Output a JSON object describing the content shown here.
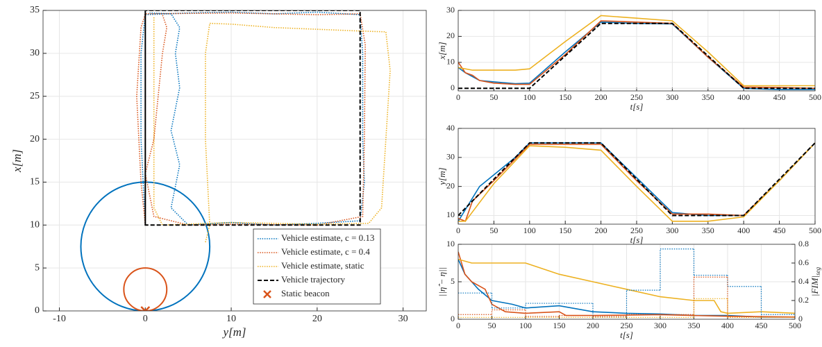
{
  "chart_data": [
    {
      "type": "line",
      "xlabel": "y[m]",
      "ylabel": "x[m]",
      "xlim": [
        -11.9,
        32.7
      ],
      "ylim": [
        0,
        35
      ],
      "xticks": [
        -10,
        0,
        10,
        20,
        30
      ],
      "yticks": [
        0,
        5,
        10,
        15,
        20,
        25,
        30,
        35
      ],
      "grid": true,
      "legend": "lower right",
      "series": [
        {
          "name": "Vehicle estimate, c = 0.13",
          "color": "#0072BD",
          "style": "dotted",
          "x": [
            0,
            -0.5,
            -0.5,
            0,
            5,
            10,
            15,
            20,
            25,
            25.3,
            25.3,
            25.5,
            25,
            20,
            15,
            10,
            5,
            3,
            4,
            3,
            4,
            3.5,
            4,
            3,
            0.5
          ],
          "values": [
            10,
            20,
            30,
            34.5,
            34.7,
            34.8,
            34.6,
            34.8,
            34.5,
            30,
            20,
            15,
            10.5,
            10.2,
            10,
            10.3,
            10,
            12,
            17,
            21,
            26,
            30,
            33,
            34.6,
            34.7
          ]
        },
        {
          "name": "Vehicle estimate, c = 0.4",
          "color": "#D95319",
          "style": "dotted",
          "x": [
            0,
            -0.5,
            -1,
            -0.5,
            0,
            10,
            20,
            25,
            25.6,
            25.5,
            25.3,
            20,
            10,
            5,
            1,
            0,
            1,
            1.5,
            2,
            2.5,
            2
          ],
          "values": [
            10,
            15,
            25,
            33,
            34.6,
            34.7,
            34.5,
            34.6,
            31,
            20,
            11,
            10,
            10.1,
            10,
            11,
            16,
            20,
            25,
            30,
            33,
            34.5
          ]
        },
        {
          "name": "Vehicle estimate, static",
          "color": "#EDB120",
          "style": "dotted",
          "x": [
            7,
            7.5,
            7,
            7,
            7.5,
            10,
            15,
            20,
            25,
            28,
            28.5,
            28,
            27.5,
            26,
            20,
            10,
            2,
            1,
            1,
            1,
            1
          ],
          "values": [
            8,
            10,
            20,
            30,
            33.5,
            33.4,
            33,
            32.8,
            32.6,
            32.5,
            28,
            20,
            12,
            10.2,
            10.1,
            10.3,
            10,
            12,
            20,
            30,
            34.3
          ]
        },
        {
          "name": "Vehicle trajectory",
          "color": "#000000",
          "style": "dashed",
          "x": [
            0,
            0,
            25,
            25,
            0,
            0
          ],
          "values": [
            10,
            35,
            35,
            10,
            10,
            35
          ]
        }
      ],
      "circles": [
        {
          "color": "#0072BD",
          "center": [
            0,
            7.5
          ],
          "radius": 7.5
        },
        {
          "color": "#D95319",
          "center": [
            0,
            2.5
          ],
          "radius": 2.5
        }
      ],
      "markers": [
        {
          "name": "Static beacon",
          "color": "#D95319",
          "x": 0,
          "y": 0
        }
      ]
    },
    {
      "type": "line",
      "xlabel": "t[s]",
      "ylabel": "x[m]",
      "xlim": [
        0,
        500
      ],
      "ylim": [
        -1,
        30
      ],
      "xticks": [
        0,
        50,
        100,
        150,
        200,
        250,
        300,
        350,
        400,
        450,
        500
      ],
      "yticks": [
        0,
        10,
        20,
        30
      ],
      "grid": true,
      "series": [
        {
          "color": "#0072BD",
          "style": "solid",
          "x": [
            0,
            10,
            30,
            50,
            80,
            100,
            150,
            200,
            250,
            300,
            350,
            400,
            450,
            500
          ],
          "values": [
            8,
            6,
            3,
            2.5,
            1.8,
            2,
            14,
            25.5,
            25,
            24.8,
            12,
            0,
            -0.5,
            -0.5
          ]
        },
        {
          "color": "#D95319",
          "style": "solid",
          "x": [
            0,
            10,
            20,
            30,
            50,
            80,
            100,
            150,
            200,
            250,
            300,
            350,
            400,
            450,
            500
          ],
          "values": [
            10,
            6,
            5,
            3,
            2,
            1.5,
            1.5,
            13,
            26,
            25.5,
            25,
            12,
            0.5,
            0.3,
            0
          ]
        },
        {
          "color": "#EDB120",
          "style": "solid",
          "x": [
            0,
            20,
            50,
            80,
            100,
            150,
            200,
            250,
            300,
            350,
            400,
            450,
            500
          ],
          "values": [
            8,
            7,
            7,
            7,
            7.5,
            18,
            28,
            27,
            26,
            14,
            1,
            1,
            1
          ]
        },
        {
          "color": "#000000",
          "style": "dashed",
          "x": [
            0,
            100,
            200,
            300,
            400,
            500
          ],
          "values": [
            0,
            0,
            25,
            25,
            0,
            0
          ]
        }
      ]
    },
    {
      "type": "line",
      "xlabel": "t[s]",
      "ylabel": "y[m]",
      "xlim": [
        0,
        500
      ],
      "ylim": [
        7,
        40
      ],
      "xticks": [
        0,
        50,
        100,
        150,
        200,
        250,
        300,
        350,
        400,
        450,
        500
      ],
      "yticks": [
        10,
        20,
        30,
        40
      ],
      "grid": true,
      "series": [
        {
          "color": "#0072BD",
          "style": "solid",
          "x": [
            0,
            10,
            30,
            50,
            80,
            100,
            150,
            200,
            250,
            300,
            350,
            400,
            450,
            500
          ],
          "values": [
            8,
            12,
            20,
            24,
            30,
            35,
            35,
            35,
            23,
            11,
            10,
            10,
            22,
            35
          ]
        },
        {
          "color": "#D95319",
          "style": "solid",
          "x": [
            0,
            10,
            20,
            50,
            100,
            150,
            200,
            250,
            300,
            350,
            400,
            450,
            500
          ],
          "values": [
            9,
            8,
            15,
            22,
            34.5,
            34.5,
            34.5,
            22,
            10.5,
            10.5,
            10,
            22,
            35
          ]
        },
        {
          "color": "#EDB120",
          "style": "solid",
          "x": [
            0,
            10,
            50,
            100,
            150,
            200,
            250,
            300,
            350,
            400,
            450,
            500
          ],
          "values": [
            8,
            8,
            21,
            34,
            33.5,
            32.5,
            20,
            8,
            8,
            9.5,
            22,
            35
          ]
        },
        {
          "color": "#000000",
          "style": "dashed",
          "x": [
            0,
            100,
            200,
            300,
            400,
            500
          ],
          "values": [
            10,
            35,
            35,
            10,
            10,
            35
          ]
        }
      ]
    },
    {
      "type": "line",
      "xlabel": "t[s]",
      "ylabel": "||η̂ − η||",
      "y2label": "|FIM|",
      "y2label_sub": "seg",
      "xlim": [
        0,
        500
      ],
      "ylim": [
        0,
        10
      ],
      "y2lim": [
        0,
        0.8
      ],
      "xticks": [
        0,
        50,
        100,
        150,
        200,
        250,
        300,
        350,
        400,
        450,
        500
      ],
      "yticks": [
        0,
        5,
        10
      ],
      "y2ticks": [
        0,
        0.2,
        0.4,
        0.6,
        0.8
      ],
      "grid": true,
      "series": [
        {
          "color": "#0072BD",
          "style": "solid",
          "x": [
            0,
            10,
            30,
            50,
            80,
            100,
            150,
            200,
            250,
            300,
            350,
            400,
            450,
            500
          ],
          "values": [
            8,
            6,
            4,
            2.5,
            2,
            1.5,
            1.8,
            1,
            0.8,
            0.7,
            0.5,
            0.5,
            0.3,
            0.3
          ]
        },
        {
          "color": "#D95319",
          "style": "solid",
          "x": [
            0,
            10,
            20,
            40,
            50,
            70,
            100,
            150,
            160,
            200,
            300,
            400,
            500
          ],
          "values": [
            9,
            6,
            5,
            4,
            2,
            1,
            0.8,
            1,
            0.5,
            0.5,
            0.6,
            0.4,
            0.3
          ]
        },
        {
          "color": "#EDB120",
          "style": "solid",
          "x": [
            0,
            20,
            50,
            100,
            150,
            200,
            250,
            300,
            350,
            380,
            390,
            400,
            450,
            500
          ],
          "values": [
            8,
            7.5,
            7.5,
            7.5,
            6,
            5,
            4,
            3,
            2.5,
            2.5,
            1,
            0.8,
            1,
            0.8
          ]
        },
        {
          "color": "#0072BD",
          "style": "dotted",
          "axis": "y2",
          "bins": [
            0,
            50,
            100,
            150,
            200,
            250,
            300,
            350,
            400,
            450,
            500
          ],
          "values": [
            0.28,
            0.12,
            0.17,
            0.17,
            0.02,
            0.31,
            0.75,
            0.47,
            0.35,
            0.05
          ]
        },
        {
          "color": "#D95319",
          "style": "dotted",
          "axis": "y2",
          "bins": [
            0,
            50,
            100,
            150,
            200,
            250,
            300,
            350,
            400,
            450,
            500
          ],
          "values": [
            0.05,
            0.1,
            0.03,
            0.04,
            0.03,
            0.05,
            0.05,
            0.45,
            0.02,
            0.02
          ]
        },
        {
          "color": "#EDB120",
          "style": "dotted",
          "axis": "y2",
          "bins": [
            0,
            50,
            100,
            150,
            200,
            250,
            300,
            350,
            400,
            450,
            500
          ],
          "values": [
            0.02,
            0.02,
            0.02,
            0.02,
            0.02,
            0.02,
            0.02,
            0.22,
            0.02,
            0.02
          ]
        }
      ]
    }
  ]
}
